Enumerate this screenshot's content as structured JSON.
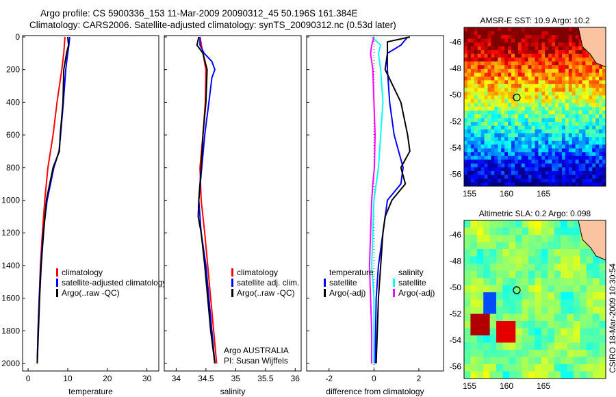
{
  "header": {
    "line1": "Argo profile: CS 5900336_153 11-Mar-2009 20090312_45 50.196S 161.384E",
    "line2": "Climatology: CARS2006. Satellite-adjusted climatology: synTS_20090312.nc (0.53d later)"
  },
  "side_label": "CSIRO 18-Mar-2009 10:30:54",
  "colors": {
    "red": "#ff0000",
    "blue": "#0000ff",
    "black": "#000000",
    "cyan": "#00ffff",
    "magenta": "#ff00ff"
  },
  "chart_data": [
    {
      "type": "line",
      "xlabel": "temperature",
      "xlim": [
        -1.4,
        33
      ],
      "xticks": [
        "0",
        "10",
        "20",
        "30"
      ],
      "ylim": [
        2000,
        0
      ],
      "yticks": [
        "0",
        "200",
        "400",
        "600",
        "800",
        "1000",
        "1200",
        "1400",
        "1600",
        "1800",
        "2000"
      ],
      "legend": [
        "climatology",
        "satellite-adjusted climatology",
        "Argo(..raw -QC)"
      ],
      "legend_colors": [
        "#ff0000",
        "#0000ff",
        "#000000"
      ],
      "series": [
        {
          "name": "climatology",
          "color": "#ff0000",
          "points": [
            [
              0,
              9.3
            ],
            [
              100,
              9
            ],
            [
              200,
              8.5
            ],
            [
              400,
              7.3
            ],
            [
              600,
              6.3
            ],
            [
              800,
              5
            ],
            [
              1000,
              4.2
            ],
            [
              1200,
              3.6
            ],
            [
              1400,
              3.1
            ],
            [
              1600,
              2.8
            ],
            [
              1800,
              2.5
            ],
            [
              2000,
              2.3
            ]
          ]
        },
        {
          "name": "satellite-adjusted climatology",
          "color": "#0000ff",
          "points": [
            [
              0,
              10.5
            ],
            [
              50,
              10.3
            ],
            [
              100,
              10
            ],
            [
              200,
              9.5
            ],
            [
              400,
              8.9
            ],
            [
              600,
              8.2
            ],
            [
              700,
              7.8
            ],
            [
              800,
              6.5
            ],
            [
              1000,
              4.8
            ],
            [
              1200,
              3.8
            ],
            [
              1400,
              3.2
            ],
            [
              1600,
              2.8
            ],
            [
              1800,
              2.5
            ],
            [
              2000,
              2.3
            ]
          ]
        },
        {
          "name": "Argo",
          "color": "#000000",
          "points": [
            [
              0,
              10
            ],
            [
              50,
              10.2
            ],
            [
              100,
              9.7
            ],
            [
              200,
              9
            ],
            [
              400,
              8.8
            ],
            [
              600,
              8.1
            ],
            [
              700,
              7.9
            ],
            [
              800,
              6.3
            ],
            [
              1000,
              4.6
            ],
            [
              1200,
              3.9
            ],
            [
              1400,
              3.3
            ],
            [
              1600,
              2.9
            ],
            [
              1800,
              2.6
            ],
            [
              2000,
              2.3
            ]
          ]
        }
      ]
    },
    {
      "type": "line",
      "xlabel": "salinity",
      "xlim": [
        33.8,
        36.1
      ],
      "xticks": [
        "34",
        "34.5",
        "35",
        "35.5",
        "36"
      ],
      "ylim": [
        2000,
        0
      ],
      "legend": [
        "climatology",
        "satellite adj. clim.",
        "Argo(..raw -QC)"
      ],
      "legend_colors": [
        "#ff0000",
        "#0000ff",
        "#000000"
      ],
      "annotation": [
        "Argo AUSTRALIA",
        "PI: Susan Wijffels"
      ],
      "series": [
        {
          "name": "climatology",
          "color": "#ff0000",
          "points": [
            [
              0,
              34.4
            ],
            [
              100,
              34.45
            ],
            [
              200,
              34.5
            ],
            [
              400,
              34.49
            ],
            [
              600,
              34.45
            ],
            [
              800,
              34.4
            ],
            [
              1000,
              34.42
            ],
            [
              1200,
              34.48
            ],
            [
              1400,
              34.53
            ],
            [
              1600,
              34.58
            ],
            [
              1800,
              34.63
            ],
            [
              2000,
              34.68
            ]
          ]
        },
        {
          "name": "satellite adj. clim.",
          "color": "#0000ff",
          "points": [
            [
              0,
              34.4
            ],
            [
              50,
              34.4
            ],
            [
              100,
              34.47
            ],
            [
              150,
              34.6
            ],
            [
              200,
              34.65
            ],
            [
              250,
              34.6
            ],
            [
              400,
              34.55
            ],
            [
              600,
              34.48
            ],
            [
              800,
              34.43
            ],
            [
              1000,
              34.38
            ],
            [
              1200,
              34.42
            ],
            [
              1400,
              34.5
            ],
            [
              1600,
              34.55
            ],
            [
              1800,
              34.6
            ],
            [
              2000,
              34.65
            ]
          ]
        },
        {
          "name": "Argo",
          "color": "#000000",
          "points": [
            [
              0,
              34.38
            ],
            [
              50,
              34.35
            ],
            [
              100,
              34.45
            ],
            [
              200,
              34.52
            ],
            [
              400,
              34.5
            ],
            [
              600,
              34.45
            ],
            [
              800,
              34.42
            ],
            [
              1000,
              34.38
            ],
            [
              1100,
              34.37
            ],
            [
              1200,
              34.42
            ],
            [
              1400,
              34.48
            ],
            [
              1600,
              34.53
            ],
            [
              1800,
              34.58
            ],
            [
              2000,
              34.65
            ]
          ]
        }
      ]
    },
    {
      "type": "line",
      "xlabel": "difference from climatology",
      "xlim": [
        -3,
        3.1
      ],
      "xticks": [
        "-2",
        "0",
        "2"
      ],
      "ylim": [
        2000,
        0
      ],
      "legend_t": [
        "temperature",
        "satellite",
        "Argo(-adj)"
      ],
      "legend_s": [
        "salinity",
        "satellite",
        "Argo(-adj)"
      ],
      "series": [
        {
          "name": "temperature satellite",
          "color": "#0000ff",
          "points": [
            [
              0,
              1.5
            ],
            [
              50,
              1.2
            ],
            [
              100,
              0.6
            ],
            [
              200,
              0.6
            ],
            [
              400,
              0.7
            ],
            [
              600,
              0.9
            ],
            [
              800,
              1.3
            ],
            [
              900,
              1.2
            ],
            [
              1000,
              0.6
            ],
            [
              1200,
              0.4
            ],
            [
              1400,
              0.2
            ],
            [
              1600,
              0.1
            ],
            [
              2000,
              0.05
            ]
          ]
        },
        {
          "name": "temperature Argo(-adj)",
          "color": "#000000",
          "points": [
            [
              0,
              1.6
            ],
            [
              30,
              0.6
            ],
            [
              100,
              0.6
            ],
            [
              200,
              0.5
            ],
            [
              400,
              1.2
            ],
            [
              600,
              1.5
            ],
            [
              700,
              1.6
            ],
            [
              800,
              1.2
            ],
            [
              900,
              1.4
            ],
            [
              1000,
              0.8
            ],
            [
              1100,
              0.5
            ],
            [
              1200,
              0.4
            ],
            [
              1400,
              0.3
            ],
            [
              1600,
              0.2
            ],
            [
              2000,
              0.1
            ]
          ]
        },
        {
          "name": "salinity satellite",
          "color": "#00ffff",
          "points": [
            [
              0,
              -0.1
            ],
            [
              50,
              0.3
            ],
            [
              100,
              0.2
            ],
            [
              200,
              0.3
            ],
            [
              400,
              0.4
            ],
            [
              600,
              0.3
            ],
            [
              800,
              0.2
            ],
            [
              900,
              0.1
            ],
            [
              1000,
              0
            ],
            [
              1200,
              -0.05
            ],
            [
              1400,
              -0.1
            ],
            [
              1600,
              0
            ],
            [
              2000,
              0
            ]
          ]
        },
        {
          "name": "salinity Argo(-adj)",
          "color": "#ff00ff",
          "points": [
            [
              0,
              0
            ],
            [
              50,
              -0.1
            ],
            [
              100,
              -0.15
            ],
            [
              200,
              -0.05
            ],
            [
              400,
              0
            ],
            [
              600,
              0.05
            ],
            [
              800,
              0.02
            ],
            [
              900,
              -0.05
            ],
            [
              1000,
              -0.1
            ],
            [
              1200,
              -0.15
            ],
            [
              1400,
              -0.2
            ],
            [
              1600,
              -0.15
            ],
            [
              1800,
              -0.1
            ],
            [
              2000,
              -0.1
            ]
          ]
        }
      ]
    },
    {
      "type": "heatmap",
      "title": "AMSR-E SST: 10.9 Argo: 10.2",
      "xticks": [
        "155",
        "160",
        "165"
      ],
      "yticks": [
        "-46",
        "-48",
        "-50",
        "-52",
        "-54",
        "-56"
      ],
      "marker": [
        161.384,
        -50.196
      ]
    },
    {
      "type": "heatmap",
      "title": "Altimetric SLA: 0.2 Argo: 0.098",
      "xticks": [
        "155",
        "160",
        "165"
      ],
      "yticks": [
        "-46",
        "-48",
        "-50",
        "-52",
        "-54",
        "-56"
      ],
      "marker": [
        161.384,
        -50.196
      ]
    }
  ]
}
